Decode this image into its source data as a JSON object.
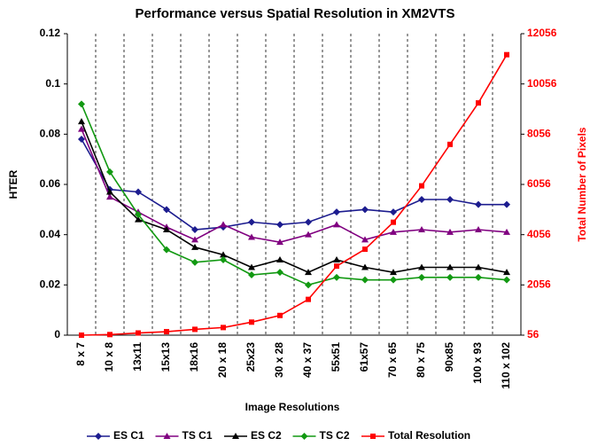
{
  "chart_data": {
    "type": "line",
    "title": "Performance versus Spatial Resolution in XM2VTS",
    "x_label": "Image Resolutions",
    "y_label": "HTER",
    "y2_label": "Total Number of Pixels",
    "categories": [
      "8 x 7",
      "10 x 8",
      "13x11",
      "15x13",
      "18x16",
      "20 x 18",
      "25x23",
      "30 x 28",
      "40 x 37",
      "55x51",
      "61x57",
      "70 x 65",
      "80 x 75",
      "90x85",
      "100 x 93",
      "110 x 102"
    ],
    "ylim": [
      0,
      0.12
    ],
    "yticks": [
      0,
      0.02,
      0.04,
      0.06,
      0.08,
      0.1,
      0.12
    ],
    "y2lim": [
      56,
      12056
    ],
    "y2ticks": [
      56,
      2056,
      4056,
      6056,
      8056,
      10056,
      12056
    ],
    "grid": true,
    "legend": "bottom",
    "series": [
      {
        "name": "ES C1",
        "color": "#1c1c8f",
        "marker": "diamond",
        "values": [
          0.078,
          0.058,
          0.057,
          0.05,
          0.042,
          0.043,
          0.045,
          0.044,
          0.045,
          0.049,
          0.05,
          0.049,
          0.054,
          0.054,
          0.052,
          0.052
        ]
      },
      {
        "name": "TS C1",
        "color": "#800080",
        "marker": "triangle",
        "values": [
          0.082,
          0.055,
          0.049,
          0.043,
          0.038,
          0.044,
          0.039,
          0.037,
          0.04,
          0.044,
          0.038,
          0.041,
          0.042,
          0.041,
          0.042,
          0.041
        ]
      },
      {
        "name": "ES C2",
        "color": "#000000",
        "marker": "triangle",
        "values": [
          0.085,
          0.057,
          0.046,
          0.042,
          0.035,
          0.032,
          0.027,
          0.03,
          0.025,
          0.03,
          0.027,
          0.025,
          0.027,
          0.027,
          0.027,
          0.025
        ]
      },
      {
        "name": "TS C2",
        "color": "#129912",
        "marker": "diamond",
        "values": [
          0.092,
          0.065,
          0.048,
          0.034,
          0.029,
          0.03,
          0.024,
          0.025,
          0.02,
          0.023,
          0.022,
          0.022,
          0.023,
          0.023,
          0.023,
          0.022
        ]
      },
      {
        "name": "Total Resolution",
        "color": "#ff0000",
        "marker": "square",
        "axis": "y2",
        "values": [
          56,
          80,
          143,
          195,
          288,
          360,
          575,
          840,
          1480,
          2805,
          3477,
          4550,
          6000,
          7650,
          9300,
          11220
        ]
      }
    ]
  }
}
